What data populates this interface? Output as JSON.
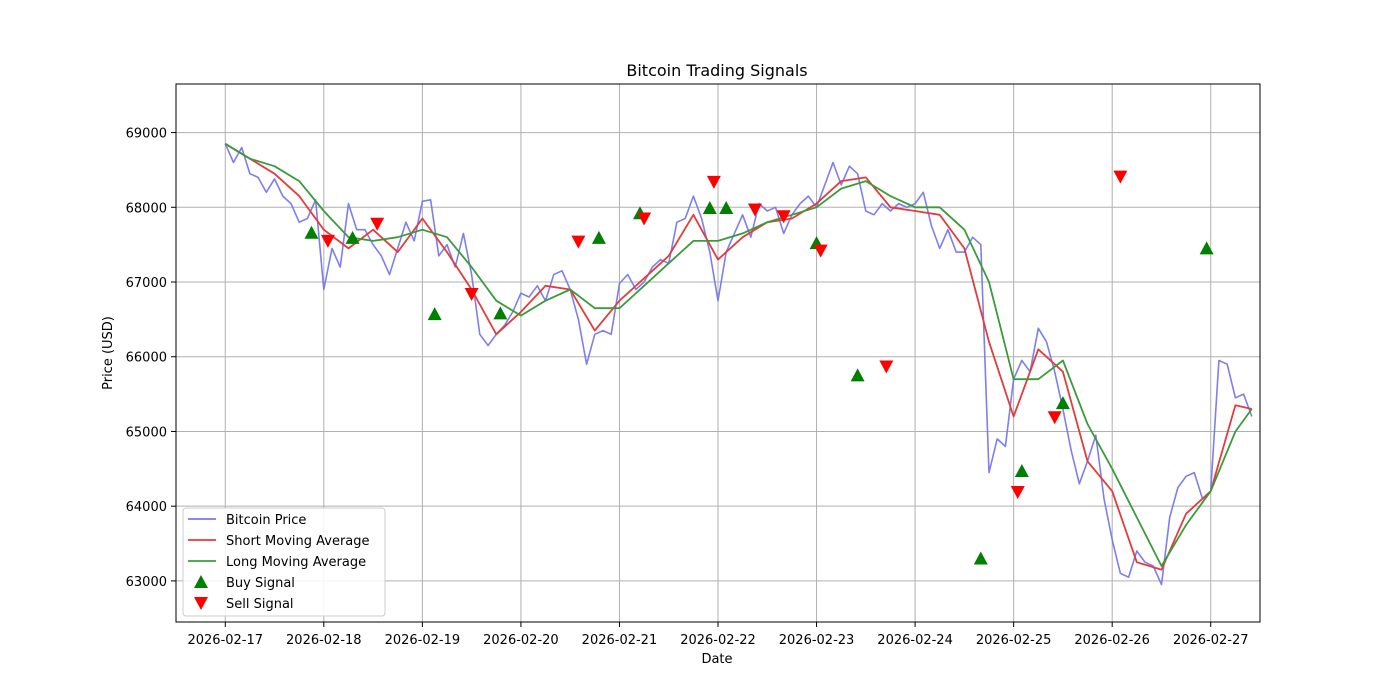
{
  "chart_data": {
    "type": "line",
    "title": "Bitcoin Trading Signals",
    "xlabel": "Date",
    "ylabel": "Price (USD)",
    "x_range": [
      "2026-02-16T12:00",
      "2026-02-27T12:00"
    ],
    "ylim": [
      62450,
      69650
    ],
    "x_ticks": [
      "2026-02-17",
      "2026-02-18",
      "2026-02-19",
      "2026-02-20",
      "2026-02-21",
      "2026-02-22",
      "2026-02-23",
      "2026-02-24",
      "2026-02-25",
      "2026-02-26",
      "2026-02-27"
    ],
    "y_ticks": [
      63000,
      64000,
      65000,
      66000,
      67000,
      68000,
      69000
    ],
    "grid": true,
    "legend_position": "bottom-left",
    "series": [
      {
        "name": "Bitcoin Price",
        "color": "#7777ee",
        "points": [
          [
            "2026-02-17T00:00",
            68850
          ],
          [
            "2026-02-17T02:00",
            68600
          ],
          [
            "2026-02-17T04:00",
            68800
          ],
          [
            "2026-02-17T06:00",
            68450
          ],
          [
            "2026-02-17T08:00",
            68400
          ],
          [
            "2026-02-17T10:00",
            68200
          ],
          [
            "2026-02-17T12:00",
            68380
          ],
          [
            "2026-02-17T14:00",
            68150
          ],
          [
            "2026-02-17T16:00",
            68050
          ],
          [
            "2026-02-17T18:00",
            67800
          ],
          [
            "2026-02-17T20:00",
            67850
          ],
          [
            "2026-02-17T22:00",
            68100
          ],
          [
            "2026-02-18T00:00",
            66900
          ],
          [
            "2026-02-18T02:00",
            67450
          ],
          [
            "2026-02-18T04:00",
            67200
          ],
          [
            "2026-02-18T06:00",
            68050
          ],
          [
            "2026-02-18T08:00",
            67700
          ],
          [
            "2026-02-18T10:00",
            67700
          ],
          [
            "2026-02-18T12:00",
            67500
          ],
          [
            "2026-02-18T14:00",
            67350
          ],
          [
            "2026-02-18T16:00",
            67100
          ],
          [
            "2026-02-18T18:00",
            67450
          ],
          [
            "2026-02-18T20:00",
            67800
          ],
          [
            "2026-02-18T22:00",
            67550
          ],
          [
            "2026-02-19T00:00",
            68080
          ],
          [
            "2026-02-19T02:00",
            68100
          ],
          [
            "2026-02-19T04:00",
            67350
          ],
          [
            "2026-02-19T06:00",
            67500
          ],
          [
            "2026-02-19T08:00",
            67200
          ],
          [
            "2026-02-19T10:00",
            67650
          ],
          [
            "2026-02-19T12:00",
            67100
          ],
          [
            "2026-02-19T14:00",
            66300
          ],
          [
            "2026-02-19T16:00",
            66150
          ],
          [
            "2026-02-19T18:00",
            66300
          ],
          [
            "2026-02-19T20:00",
            66420
          ],
          [
            "2026-02-19T22:00",
            66600
          ],
          [
            "2026-02-20T00:00",
            66850
          ],
          [
            "2026-02-20T02:00",
            66800
          ],
          [
            "2026-02-20T04:00",
            66950
          ],
          [
            "2026-02-20T06:00",
            66750
          ],
          [
            "2026-02-20T08:00",
            67100
          ],
          [
            "2026-02-20T10:00",
            67150
          ],
          [
            "2026-02-20T12:00",
            66900
          ],
          [
            "2026-02-20T14:00",
            66500
          ],
          [
            "2026-02-20T16:00",
            65900
          ],
          [
            "2026-02-20T18:00",
            66300
          ],
          [
            "2026-02-20T20:00",
            66350
          ],
          [
            "2026-02-20T22:00",
            66300
          ],
          [
            "2026-02-21T00:00",
            66980
          ],
          [
            "2026-02-21T02:00",
            67100
          ],
          [
            "2026-02-21T04:00",
            66900
          ],
          [
            "2026-02-21T06:00",
            67000
          ],
          [
            "2026-02-21T08:00",
            67200
          ],
          [
            "2026-02-21T10:00",
            67300
          ],
          [
            "2026-02-21T12:00",
            67250
          ],
          [
            "2026-02-21T14:00",
            67800
          ],
          [
            "2026-02-21T16:00",
            67850
          ],
          [
            "2026-02-21T18:00",
            68150
          ],
          [
            "2026-02-21T20:00",
            67850
          ],
          [
            "2026-02-21T22:00",
            67400
          ],
          [
            "2026-02-22T00:00",
            66750
          ],
          [
            "2026-02-22T02:00",
            67400
          ],
          [
            "2026-02-22T04:00",
            67650
          ],
          [
            "2026-02-22T06:00",
            67900
          ],
          [
            "2026-02-22T08:00",
            67600
          ],
          [
            "2026-02-22T10:00",
            68050
          ],
          [
            "2026-02-22T12:00",
            67950
          ],
          [
            "2026-02-22T14:00",
            68000
          ],
          [
            "2026-02-22T16:00",
            67650
          ],
          [
            "2026-02-22T18:00",
            67900
          ],
          [
            "2026-02-22T20:00",
            68050
          ],
          [
            "2026-02-22T22:00",
            68150
          ],
          [
            "2026-02-23T00:00",
            68000
          ],
          [
            "2026-02-23T02:00",
            68300
          ],
          [
            "2026-02-23T04:00",
            68600
          ],
          [
            "2026-02-23T06:00",
            68300
          ],
          [
            "2026-02-23T08:00",
            68550
          ],
          [
            "2026-02-23T10:00",
            68450
          ],
          [
            "2026-02-23T12:00",
            67950
          ],
          [
            "2026-02-23T14:00",
            67900
          ],
          [
            "2026-02-23T16:00",
            68050
          ],
          [
            "2026-02-23T18:00",
            67950
          ],
          [
            "2026-02-23T20:00",
            68050
          ],
          [
            "2026-02-23T22:00",
            68000
          ],
          [
            "2026-02-24T00:00",
            68050
          ],
          [
            "2026-02-24T02:00",
            68200
          ],
          [
            "2026-02-24T04:00",
            67750
          ],
          [
            "2026-02-24T06:00",
            67450
          ],
          [
            "2026-02-24T08:00",
            67700
          ],
          [
            "2026-02-24T10:00",
            67400
          ],
          [
            "2026-02-24T12:00",
            67400
          ],
          [
            "2026-02-24T14:00",
            67600
          ],
          [
            "2026-02-24T16:00",
            67500
          ],
          [
            "2026-02-24T18:00",
            64450
          ],
          [
            "2026-02-24T20:00",
            64900
          ],
          [
            "2026-02-24T22:00",
            64800
          ],
          [
            "2026-02-25T00:00",
            65700
          ],
          [
            "2026-02-25T02:00",
            65950
          ],
          [
            "2026-02-25T04:00",
            65800
          ],
          [
            "2026-02-25T06:00",
            66380
          ],
          [
            "2026-02-25T08:00",
            66200
          ],
          [
            "2026-02-25T10:00",
            65800
          ],
          [
            "2026-02-25T12:00",
            65300
          ],
          [
            "2026-02-25T14:00",
            64750
          ],
          [
            "2026-02-25T16:00",
            64300
          ],
          [
            "2026-02-25T18:00",
            64600
          ],
          [
            "2026-02-25T20:00",
            64950
          ],
          [
            "2026-02-25T22:00",
            64100
          ],
          [
            "2026-02-26T00:00",
            63550
          ],
          [
            "2026-02-26T02:00",
            63100
          ],
          [
            "2026-02-26T04:00",
            63050
          ],
          [
            "2026-02-26T06:00",
            63400
          ],
          [
            "2026-02-26T08:00",
            63250
          ],
          [
            "2026-02-26T10:00",
            63200
          ],
          [
            "2026-02-26T12:00",
            62950
          ],
          [
            "2026-02-26T14:00",
            63850
          ],
          [
            "2026-02-26T16:00",
            64250
          ],
          [
            "2026-02-26T18:00",
            64400
          ],
          [
            "2026-02-26T20:00",
            64450
          ],
          [
            "2026-02-26T22:00",
            64100
          ],
          [
            "2026-02-27T00:00",
            64200
          ],
          [
            "2026-02-27T02:00",
            65950
          ],
          [
            "2026-02-27T04:00",
            65900
          ],
          [
            "2026-02-27T06:00",
            65450
          ],
          [
            "2026-02-27T08:00",
            65500
          ],
          [
            "2026-02-27T10:00",
            65200
          ]
        ]
      },
      {
        "name": "Short Moving Average",
        "color": "#e43b3b",
        "points": [
          [
            "2026-02-17T00:00",
            68850
          ],
          [
            "2026-02-17T06:00",
            68650
          ],
          [
            "2026-02-17T12:00",
            68450
          ],
          [
            "2026-02-17T18:00",
            68150
          ],
          [
            "2026-02-18T00:00",
            67700
          ],
          [
            "2026-02-18T06:00",
            67450
          ],
          [
            "2026-02-18T12:00",
            67700
          ],
          [
            "2026-02-18T18:00",
            67400
          ],
          [
            "2026-02-19T00:00",
            67850
          ],
          [
            "2026-02-19T06:00",
            67400
          ],
          [
            "2026-02-19T12:00",
            66900
          ],
          [
            "2026-02-19T18:00",
            66300
          ],
          [
            "2026-02-20T00:00",
            66600
          ],
          [
            "2026-02-20T06:00",
            66950
          ],
          [
            "2026-02-20T12:00",
            66900
          ],
          [
            "2026-02-20T18:00",
            66350
          ],
          [
            "2026-02-21T00:00",
            66750
          ],
          [
            "2026-02-21T06:00",
            67050
          ],
          [
            "2026-02-21T12:00",
            67350
          ],
          [
            "2026-02-21T18:00",
            67900
          ],
          [
            "2026-02-22T00:00",
            67300
          ],
          [
            "2026-02-22T06:00",
            67600
          ],
          [
            "2026-02-22T12:00",
            67800
          ],
          [
            "2026-02-22T18:00",
            67850
          ],
          [
            "2026-02-23T00:00",
            68050
          ],
          [
            "2026-02-23T06:00",
            68350
          ],
          [
            "2026-02-23T12:00",
            68400
          ],
          [
            "2026-02-23T18:00",
            68000
          ],
          [
            "2026-02-24T00:00",
            67950
          ],
          [
            "2026-02-24T06:00",
            67900
          ],
          [
            "2026-02-24T12:00",
            67450
          ],
          [
            "2026-02-24T18:00",
            66200
          ],
          [
            "2026-02-25T00:00",
            65200
          ],
          [
            "2026-02-25T06:00",
            66100
          ],
          [
            "2026-02-25T12:00",
            65800
          ],
          [
            "2026-02-25T18:00",
            64600
          ],
          [
            "2026-02-26T00:00",
            64200
          ],
          [
            "2026-02-26T06:00",
            63250
          ],
          [
            "2026-02-26T12:00",
            63150
          ],
          [
            "2026-02-26T18:00",
            63900
          ],
          [
            "2026-02-27T00:00",
            64200
          ],
          [
            "2026-02-27T06:00",
            65350
          ],
          [
            "2026-02-27T10:00",
            65300
          ]
        ]
      },
      {
        "name": "Long Moving Average",
        "color": "#3b9b3b",
        "points": [
          [
            "2026-02-17T00:00",
            68850
          ],
          [
            "2026-02-17T06:00",
            68650
          ],
          [
            "2026-02-17T12:00",
            68550
          ],
          [
            "2026-02-17T18:00",
            68350
          ],
          [
            "2026-02-18T00:00",
            67950
          ],
          [
            "2026-02-18T06:00",
            67600
          ],
          [
            "2026-02-18T12:00",
            67550
          ],
          [
            "2026-02-18T18:00",
            67600
          ],
          [
            "2026-02-19T00:00",
            67700
          ],
          [
            "2026-02-19T06:00",
            67600
          ],
          [
            "2026-02-19T12:00",
            67200
          ],
          [
            "2026-02-19T18:00",
            66750
          ],
          [
            "2026-02-20T00:00",
            66550
          ],
          [
            "2026-02-20T06:00",
            66750
          ],
          [
            "2026-02-20T12:00",
            66900
          ],
          [
            "2026-02-20T18:00",
            66650
          ],
          [
            "2026-02-21T00:00",
            66650
          ],
          [
            "2026-02-21T06:00",
            66950
          ],
          [
            "2026-02-21T12:00",
            67250
          ],
          [
            "2026-02-21T18:00",
            67550
          ],
          [
            "2026-02-22T00:00",
            67550
          ],
          [
            "2026-02-22T06:00",
            67650
          ],
          [
            "2026-02-22T12:00",
            67800
          ],
          [
            "2026-02-22T18:00",
            67900
          ],
          [
            "2026-02-23T00:00",
            68000
          ],
          [
            "2026-02-23T06:00",
            68250
          ],
          [
            "2026-02-23T12:00",
            68350
          ],
          [
            "2026-02-23T18:00",
            68150
          ],
          [
            "2026-02-24T00:00",
            68000
          ],
          [
            "2026-02-24T06:00",
            68000
          ],
          [
            "2026-02-24T12:00",
            67700
          ],
          [
            "2026-02-24T18:00",
            67000
          ],
          [
            "2026-02-25T00:00",
            65700
          ],
          [
            "2026-02-25T06:00",
            65700
          ],
          [
            "2026-02-25T12:00",
            65950
          ],
          [
            "2026-02-25T18:00",
            65100
          ],
          [
            "2026-02-26T00:00",
            64500
          ],
          [
            "2026-02-26T06:00",
            63850
          ],
          [
            "2026-02-26T12:00",
            63200
          ],
          [
            "2026-02-26T18:00",
            63750
          ],
          [
            "2026-02-27T00:00",
            64200
          ],
          [
            "2026-02-27T06:00",
            65000
          ],
          [
            "2026-02-27T10:00",
            65300
          ]
        ]
      }
    ],
    "buy_signals": {
      "name": "Buy Signal",
      "color": "#008000",
      "points": [
        [
          "2026-02-17T21:00",
          67660
        ],
        [
          "2026-02-18T07:00",
          67590
        ],
        [
          "2026-02-19T03:00",
          66570
        ],
        [
          "2026-02-19T19:00",
          66580
        ],
        [
          "2026-02-20T19:00",
          67590
        ],
        [
          "2026-02-21T05:00",
          67920
        ],
        [
          "2026-02-21T22:00",
          67990
        ],
        [
          "2026-02-22T02:00",
          67990
        ],
        [
          "2026-02-23T00:00",
          67520
        ],
        [
          "2026-02-23T10:00",
          65750
        ],
        [
          "2026-02-24T16:00",
          63300
        ],
        [
          "2026-02-25T02:00",
          64470
        ],
        [
          "2026-02-25T12:00",
          65380
        ],
        [
          "2026-02-26T23:00",
          67450
        ]
      ]
    },
    "sell_signals": {
      "name": "Sell Signal",
      "color": "#ff0000",
      "points": [
        [
          "2026-02-18T01:00",
          67550
        ],
        [
          "2026-02-18T13:00",
          67780
        ],
        [
          "2026-02-19T12:00",
          66840
        ],
        [
          "2026-02-20T14:00",
          67540
        ],
        [
          "2026-02-21T06:00",
          67850
        ],
        [
          "2026-02-21T23:00",
          68340
        ],
        [
          "2026-02-22T09:00",
          67970
        ],
        [
          "2026-02-22T16:00",
          67880
        ],
        [
          "2026-02-23T01:00",
          67420
        ],
        [
          "2026-02-23T17:00",
          65870
        ],
        [
          "2026-02-25T01:00",
          64190
        ],
        [
          "2026-02-25T10:00",
          65190
        ],
        [
          "2026-02-26T02:00",
          68410
        ]
      ]
    }
  }
}
